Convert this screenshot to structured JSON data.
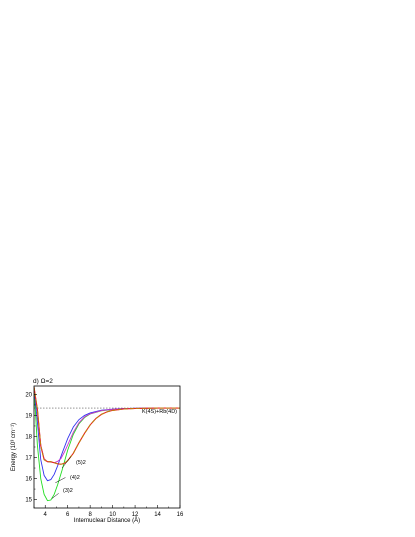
{
  "chart_data": {
    "type": "line",
    "panel_label": "d) Ω=2",
    "xlabel": "Internuclear Distance (Å)",
    "ylabel": "Energy (10³ cm⁻¹)",
    "xlim": [
      3,
      16
    ],
    "ylim": [
      14.6,
      20.4
    ],
    "xticks": [
      4,
      6,
      8,
      10,
      12,
      14,
      16
    ],
    "yticks": [
      15,
      16,
      17,
      18,
      19,
      20
    ],
    "asymptote": {
      "value": 19.35,
      "label": "K(4S)+Rb(4D)"
    },
    "grid": false,
    "series": [
      {
        "name": "(3)2",
        "color": "#22dd22",
        "dash": "",
        "x": [
          3.0,
          3.3,
          3.6,
          3.9,
          4.2,
          4.5,
          4.8,
          5.1,
          5.5,
          6.0,
          6.5,
          7.0,
          7.5,
          8.0,
          9.0,
          10.0,
          11.0,
          12.0,
          14.0,
          16.0
        ],
        "y": [
          20.35,
          17.6,
          16.0,
          15.25,
          14.95,
          14.98,
          15.25,
          15.7,
          16.4,
          17.35,
          18.1,
          18.6,
          18.9,
          19.07,
          19.22,
          19.28,
          19.32,
          19.34,
          19.35,
          19.35
        ]
      },
      {
        "name": "(4)2",
        "color": "#3333ee",
        "dash": "",
        "x": [
          3.0,
          3.3,
          3.6,
          3.9,
          4.2,
          4.5,
          4.8,
          5.1,
          5.5,
          6.0,
          6.5,
          7.0,
          7.5,
          8.0,
          9.0,
          10.0,
          11.0,
          12.0,
          14.0,
          16.0
        ],
        "y": [
          20.35,
          18.7,
          16.9,
          16.15,
          15.9,
          15.95,
          16.2,
          16.6,
          17.2,
          17.9,
          18.45,
          18.8,
          19.0,
          19.12,
          19.25,
          19.3,
          19.33,
          19.34,
          19.35,
          19.35
        ]
      },
      {
        "name": "(5)2",
        "color": "#cc33cc",
        "dash": "",
        "x": [
          3.0,
          3.3,
          3.6,
          3.9,
          4.2,
          4.5,
          4.8,
          5.1,
          5.4,
          5.7,
          6.0,
          6.5,
          7.0,
          7.5,
          8.0,
          9.0,
          10.0,
          11.0,
          12.0,
          14.0,
          16.0
        ],
        "y": [
          20.35,
          19.25,
          17.6,
          16.95,
          16.8,
          16.78,
          16.75,
          16.82,
          16.95,
          17.25,
          17.6,
          18.2,
          18.65,
          18.93,
          19.08,
          19.23,
          19.29,
          19.32,
          19.34,
          19.35,
          19.35
        ]
      },
      {
        "name": "",
        "color": "#ee2222",
        "dash": "",
        "x": [
          3.0,
          3.3,
          3.6,
          3.9,
          4.2,
          4.5,
          4.8,
          5.1,
          5.4,
          5.7,
          6.0,
          6.5,
          7.0,
          7.5,
          8.0,
          8.5,
          9.0,
          9.5,
          10.0,
          11.0,
          12.0,
          13.0,
          14.0,
          16.0
        ],
        "y": [
          20.35,
          19.3,
          17.55,
          16.9,
          16.8,
          16.8,
          16.75,
          16.7,
          16.68,
          16.72,
          16.85,
          17.2,
          17.7,
          18.15,
          18.55,
          18.85,
          19.05,
          19.17,
          19.24,
          19.31,
          19.33,
          19.34,
          19.35,
          19.35
        ]
      },
      {
        "name": "",
        "color": "#c07a10",
        "dash": "4,2",
        "x": [
          3.0,
          3.3,
          3.6,
          3.9,
          4.2,
          4.5,
          4.8,
          5.1,
          5.4,
          5.7,
          6.0,
          6.5,
          7.0,
          7.5,
          8.0,
          8.5,
          9.0,
          9.5,
          10.0,
          11.0,
          12.0,
          13.0,
          14.0,
          16.0
        ],
        "y": [
          20.35,
          19.3,
          17.55,
          16.9,
          16.8,
          16.8,
          16.75,
          16.7,
          16.68,
          16.72,
          16.85,
          17.2,
          17.7,
          18.15,
          18.55,
          18.85,
          19.05,
          19.17,
          19.24,
          19.31,
          19.33,
          19.34,
          19.35,
          19.35
        ]
      }
    ],
    "annotations": [
      "(5)2",
      "(4)2",
      "(3)2"
    ]
  }
}
